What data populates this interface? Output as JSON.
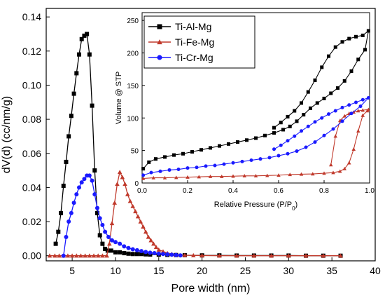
{
  "chart_data": [
    {
      "type": "line",
      "title": "",
      "xlabel": "Pore width (nm)",
      "ylabel": "dV(d) (cc/nm/g)",
      "xlim": [
        2,
        40
      ],
      "ylim": [
        -0.003,
        0.145
      ],
      "xticks": [
        5,
        10,
        15,
        20,
        25,
        30,
        35,
        40
      ],
      "yticks": [
        0.0,
        0.02,
        0.04,
        0.06,
        0.08,
        0.1,
        0.12,
        0.14
      ],
      "ytick_labels": [
        "0.00",
        "0.02",
        "0.04",
        "0.06",
        "0.08",
        "0.10",
        "0.12",
        "0.14"
      ],
      "grid": false,
      "legend": "none",
      "series": [
        {
          "name": "Ti-Al-Mg",
          "color": "#000000",
          "marker": "square",
          "x": [
            3.1,
            3.4,
            3.7,
            4.0,
            4.3,
            4.6,
            4.9,
            5.2,
            5.5,
            5.8,
            6.1,
            6.4,
            6.7,
            7.0,
            7.3,
            7.6,
            7.9,
            8.2,
            8.5,
            8.8,
            9.1,
            9.5,
            10.0,
            10.5,
            11.0,
            11.5,
            12.0,
            12.5,
            13.0,
            13.5,
            14.0,
            15.0,
            16.0,
            17.0,
            18.0,
            20.0,
            22.0,
            24.0,
            26.0,
            28.0,
            30.0,
            32.0,
            34.0,
            36.0
          ],
          "y": [
            0.007,
            0.014,
            0.025,
            0.041,
            0.055,
            0.07,
            0.082,
            0.095,
            0.107,
            0.118,
            0.127,
            0.129,
            0.13,
            0.118,
            0.088,
            0.05,
            0.025,
            0.012,
            0.007,
            0.004,
            0.003,
            0.003,
            0.002,
            0.002,
            0.0015,
            0.0012,
            0.001,
            0.001,
            0.001,
            0.0008,
            0.0007,
            0.0006,
            0.0005,
            0.0004,
            0.0003,
            0.0002,
            0.0002,
            0.0001,
            0.0001,
            0.0001,
            0.0001,
            0.0,
            0.0,
            0.0
          ]
        },
        {
          "name": "Ti-Fe-Mg",
          "color": "#c0392b",
          "marker": "triangle",
          "x": [
            2.4,
            3.0,
            3.5,
            4.0,
            4.5,
            5.0,
            5.5,
            6.0,
            6.5,
            7.0,
            7.5,
            8.0,
            8.5,
            9.0,
            9.3,
            9.6,
            9.9,
            10.2,
            10.5,
            10.8,
            11.1,
            11.4,
            11.7,
            12.0,
            12.3,
            12.6,
            12.9,
            13.2,
            13.5,
            13.8,
            14.1,
            14.4,
            14.7,
            15.0,
            15.5,
            16.0,
            16.5,
            17.0,
            18.0,
            19.0,
            20.0,
            22.0,
            24.0,
            26.0,
            28.0,
            30.0,
            32.0,
            34.0,
            36.0
          ],
          "y": [
            0.0,
            0.0,
            0.0,
            0.0,
            0.0,
            0.0,
            0.0,
            0.0,
            0.0,
            0.0,
            0.0,
            0.0,
            0.0,
            0.0,
            0.007,
            0.019,
            0.031,
            0.042,
            0.049,
            0.046,
            0.042,
            0.036,
            0.032,
            0.029,
            0.026,
            0.023,
            0.02,
            0.017,
            0.014,
            0.011,
            0.009,
            0.007,
            0.005,
            0.0035,
            0.0025,
            0.0015,
            0.001,
            0.0006,
            0.0003,
            0.0002,
            0.0001,
            0.0,
            0.0,
            0.0,
            0.0,
            0.0,
            0.0,
            0.0,
            0.0
          ]
        },
        {
          "name": "Ti-Cr-Mg",
          "color": "#1a1aff",
          "marker": "circle",
          "x": [
            4.0,
            4.3,
            4.6,
            4.9,
            5.2,
            5.5,
            5.8,
            6.1,
            6.4,
            6.7,
            7.0,
            7.3,
            7.6,
            7.9,
            8.2,
            8.5,
            8.8,
            9.2,
            9.6,
            10.0,
            10.5,
            11.0,
            11.5,
            12.0,
            12.5,
            13.0,
            13.5,
            14.0,
            14.5,
            15.0,
            15.5,
            16.0,
            16.5,
            17.0,
            17.5
          ],
          "y": [
            0.0,
            0.011,
            0.02,
            0.025,
            0.031,
            0.036,
            0.04,
            0.043,
            0.045,
            0.047,
            0.047,
            0.044,
            0.036,
            0.028,
            0.022,
            0.018,
            0.014,
            0.011,
            0.009,
            0.008,
            0.007,
            0.0055,
            0.0045,
            0.0038,
            0.0032,
            0.0027,
            0.0022,
            0.0018,
            0.0015,
            0.0012,
            0.001,
            0.0008,
            0.0006,
            0.0004,
            0.0002
          ]
        }
      ]
    },
    {
      "type": "line",
      "title": "",
      "xlabel": "Relative Pressure (P/P",
      "xlabel_sub": "0",
      "xlabel_end": ")",
      "ylabel": "Volume @ STP",
      "xlim": [
        0,
        1.0
      ],
      "ylim": [
        0,
        262
      ],
      "xticks": [
        0.0,
        0.2,
        0.4,
        0.6,
        0.8,
        1.0
      ],
      "xtick_labels": [
        "0.0",
        "0.2",
        "0.4",
        "0.6",
        "0.8",
        "1.0"
      ],
      "yticks": [
        0,
        50,
        100,
        150,
        200,
        250
      ],
      "grid": false,
      "legend": "top-left",
      "series": [
        {
          "name": "Ti-Al-Mg",
          "color": "#000000",
          "marker": "square",
          "x": [
            0.005,
            0.03,
            0.06,
            0.1,
            0.14,
            0.18,
            0.22,
            0.26,
            0.3,
            0.34,
            0.38,
            0.42,
            0.46,
            0.5,
            0.54,
            0.58,
            0.62,
            0.65,
            0.68,
            0.71,
            0.74,
            0.77,
            0.8,
            0.83,
            0.86,
            0.89,
            0.92,
            0.95,
            0.98,
            0.995,
            0.97,
            0.94,
            0.91,
            0.88,
            0.85,
            0.82,
            0.79,
            0.76,
            0.73,
            0.7,
            0.67,
            0.64,
            0.61,
            0.58
          ],
          "y": [
            22,
            32,
            37,
            40,
            43,
            45,
            48,
            51,
            54,
            57,
            60,
            63,
            66,
            69,
            73,
            77,
            82,
            87,
            95,
            105,
            115,
            123,
            130,
            138,
            146,
            157,
            172,
            190,
            205,
            234,
            227,
            225,
            222,
            217,
            209,
            195,
            178,
            158,
            140,
            123,
            111,
            102,
            93,
            85
          ]
        },
        {
          "name": "Ti-Fe-Mg",
          "color": "#c0392b",
          "marker": "triangle",
          "x": [
            0.005,
            0.05,
            0.1,
            0.15,
            0.2,
            0.25,
            0.3,
            0.35,
            0.4,
            0.45,
            0.5,
            0.55,
            0.6,
            0.65,
            0.7,
            0.75,
            0.8,
            0.84,
            0.87,
            0.89,
            0.91,
            0.93,
            0.95,
            0.97,
            0.99,
            0.995,
            0.97,
            0.95,
            0.93,
            0.91,
            0.89,
            0.87,
            0.85,
            0.83
          ],
          "y": [
            7,
            8,
            8,
            8.5,
            9,
            9.5,
            10,
            10,
            10.5,
            11,
            11,
            11.5,
            12,
            13,
            13.5,
            14,
            15,
            16,
            18,
            22,
            31,
            52,
            80,
            104,
            111,
            113,
            112,
            111,
            109,
            107,
            103,
            96,
            72,
            28
          ]
        },
        {
          "name": "Ti-Cr-Mg",
          "color": "#1a1aff",
          "marker": "circle",
          "x": [
            0.005,
            0.04,
            0.08,
            0.12,
            0.16,
            0.2,
            0.24,
            0.28,
            0.32,
            0.36,
            0.4,
            0.44,
            0.48,
            0.52,
            0.56,
            0.6,
            0.64,
            0.68,
            0.72,
            0.76,
            0.8,
            0.84,
            0.88,
            0.92,
            0.96,
            0.995,
            0.97,
            0.94,
            0.91,
            0.88,
            0.85,
            0.82,
            0.79,
            0.76,
            0.73,
            0.7,
            0.67,
            0.64,
            0.61,
            0.58
          ],
          "y": [
            12,
            16,
            18,
            20,
            21,
            23,
            24,
            26,
            27,
            29,
            31,
            33,
            35,
            37,
            39,
            42,
            45,
            49,
            55,
            63,
            73,
            83,
            95,
            107,
            118,
            131,
            128,
            124,
            120,
            116,
            111,
            106,
            100,
            94,
            87,
            80,
            72,
            65,
            58,
            52
          ]
        }
      ]
    }
  ]
}
